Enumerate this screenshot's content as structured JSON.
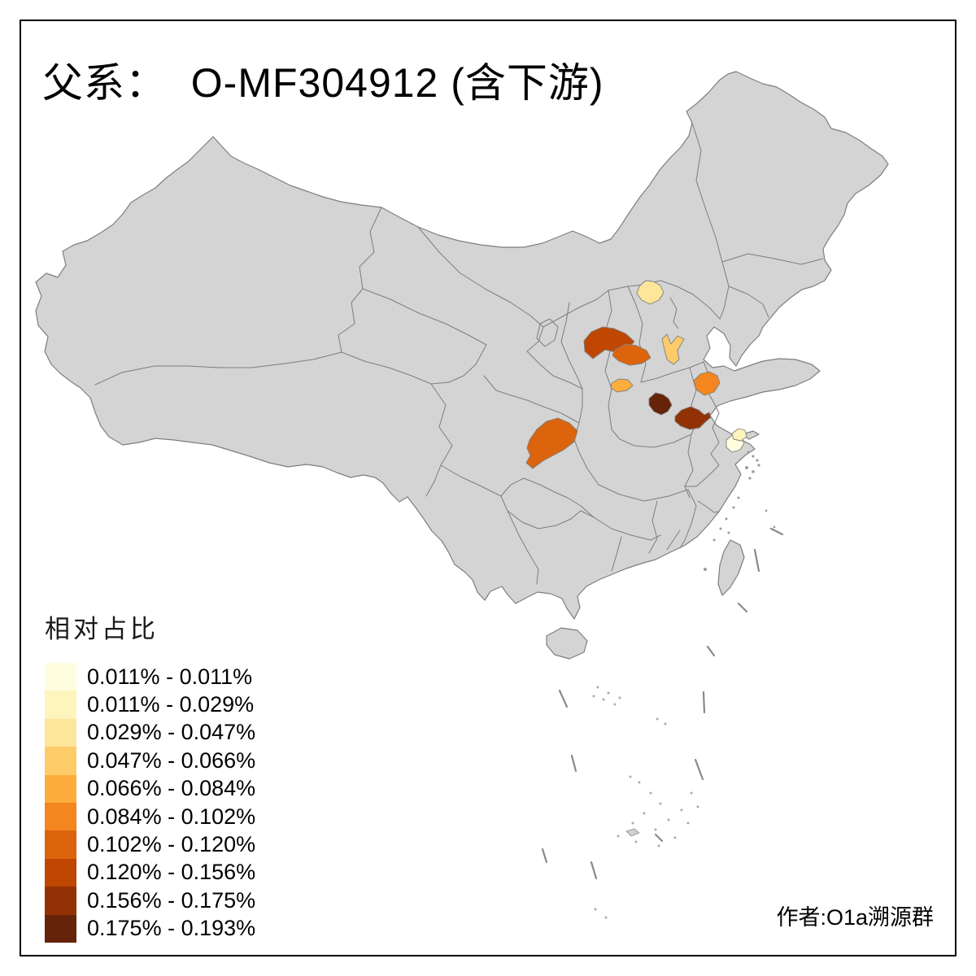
{
  "title": "父系：  O-MF304912 (含下游)",
  "credit": "作者:O1a溯源群",
  "legend": {
    "title": "相对占比",
    "classes": [
      {
        "range": "0.011% - 0.011%",
        "color": "#FFFDE0"
      },
      {
        "range": "0.011% - 0.029%",
        "color": "#FDF5BC"
      },
      {
        "range": "0.029% - 0.047%",
        "color": "#FDE59A"
      },
      {
        "range": "0.047% - 0.066%",
        "color": "#FDCC69"
      },
      {
        "range": "0.066% - 0.084%",
        "color": "#FDAD3B"
      },
      {
        "range": "0.084% - 0.102%",
        "color": "#F4861F"
      },
      {
        "range": "0.102% - 0.120%",
        "color": "#DC640D"
      },
      {
        "range": "0.120% - 0.156%",
        "color": "#BF4702"
      },
      {
        "range": "0.156% - 0.175%",
        "color": "#923204"
      },
      {
        "range": "0.175% - 0.193%",
        "color": "#652309"
      }
    ]
  },
  "map": {
    "background": "#FFFFFF",
    "base_fill": "#D4D4D4",
    "border_color": "#7E7E7E",
    "frame_color": "#000000",
    "regions": [
      {
        "id": "region-1",
        "bin": "0.029% - 0.047%",
        "color": "#FDE59A"
      },
      {
        "id": "region-2",
        "bin": "0.120% - 0.156%",
        "color": "#BF4702"
      },
      {
        "id": "region-3",
        "bin": "0.102% - 0.120%",
        "color": "#DC640D"
      },
      {
        "id": "region-4",
        "bin": "0.047% - 0.066%",
        "color": "#FDCC69"
      },
      {
        "id": "region-5",
        "bin": "0.066% - 0.084%",
        "color": "#FDAD3B"
      },
      {
        "id": "region-6",
        "bin": "0.084% - 0.102%",
        "color": "#F4861F"
      },
      {
        "id": "region-7",
        "bin": "0.175% - 0.193%",
        "color": "#652309"
      },
      {
        "id": "region-8",
        "bin": "0.156% - 0.175%",
        "color": "#923204"
      },
      {
        "id": "region-9",
        "bin": "0.102% - 0.120%",
        "color": "#DC640D"
      },
      {
        "id": "region-10",
        "bin": "0.011% - 0.011%",
        "color": "#FFFDE0"
      },
      {
        "id": "region-11",
        "bin": "0.011% - 0.029%",
        "color": "#FDF5BC"
      }
    ]
  }
}
